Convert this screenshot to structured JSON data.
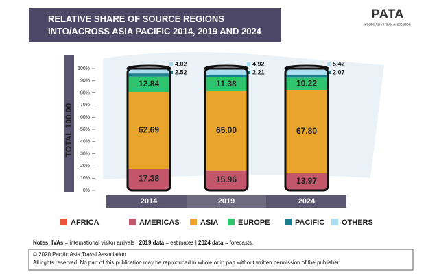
{
  "header": {
    "title": "RELATIVE SHARE OF SOURCE REGIONS INTO/ACROSS ASIA PACIFIC 2014, 2019 AND 2024",
    "logo": "PATA",
    "logo_sub": "Pacific Asia Travel Association"
  },
  "chart_data": {
    "type": "stacked-bar",
    "y_label": "TOTAL 100.00",
    "categories": [
      "2014",
      "2019",
      "2024"
    ],
    "series": [
      {
        "name": "AFRICA",
        "color": "#e9553c",
        "values": [
          0.55,
          0.52,
          0.53
        ]
      },
      {
        "name": "AMERICAS",
        "color": "#c4566b",
        "values": [
          17.38,
          15.96,
          13.97
        ]
      },
      {
        "name": "ASIA",
        "color": "#e9a42c",
        "values": [
          62.69,
          65.0,
          67.8
        ],
        "value_labels": [
          "62.69",
          "65.00",
          "67.80"
        ]
      },
      {
        "name": "EUROPE",
        "color": "#2ec46d",
        "values": [
          12.84,
          11.38,
          10.22
        ]
      },
      {
        "name": "PACIFIC",
        "color": "#1a7d8e",
        "values": [
          2.52,
          2.21,
          2.07
        ]
      },
      {
        "name": "OTHERS",
        "color": "#a9ddf0",
        "values": [
          4.02,
          4.92,
          5.42
        ]
      }
    ],
    "ylim": [
      0,
      100
    ],
    "yticks": [
      {
        "value": 0,
        "label": "0%"
      },
      {
        "value": 10,
        "label": "10%"
      },
      {
        "value": 20,
        "label": "20%"
      },
      {
        "value": 30,
        "label": "30%"
      },
      {
        "value": 40,
        "label": "40%"
      },
      {
        "value": 50,
        "label": "50%"
      },
      {
        "value": 60,
        "label": "60%"
      },
      {
        "value": 70,
        "label": "70%"
      },
      {
        "value": 80,
        "label": "80%"
      },
      {
        "value": 90,
        "label": "90%"
      },
      {
        "value": 100,
        "label": "100%"
      }
    ]
  },
  "notes": [
    "Notes:  IVAs",
    " = international visitor arrivals | ",
    "2019 data",
    " = estimates | ",
    "2024 data",
    " = forecasts."
  ],
  "footer": {
    "line1": "© 2020 Pacific Asia Travel Association",
    "line2": "All rights reserved. No part of this publication may be reproduced in whole or in part without written permission of the publisher."
  }
}
